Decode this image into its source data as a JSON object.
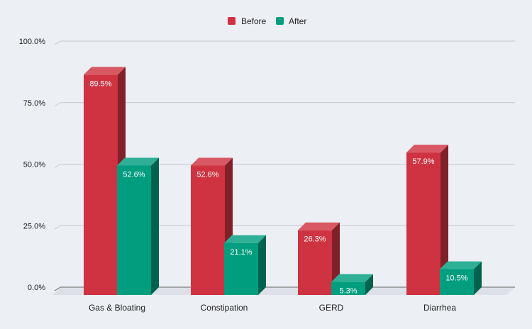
{
  "chart_data": {
    "type": "bar",
    "title": "",
    "xlabel": "",
    "ylabel": "",
    "categories": [
      "Gas & Bloating",
      "Constipation",
      "GERD",
      "Diarrhea"
    ],
    "series": [
      {
        "name": "Before",
        "color": "#cf3341",
        "values": [
          89.5,
          52.6,
          26.3,
          57.9
        ],
        "labels": [
          "89.5%",
          "52.6%",
          "26.3%",
          "57.9%"
        ]
      },
      {
        "name": "After",
        "color": "#009e7f",
        "values": [
          52.6,
          21.1,
          5.3,
          10.5
        ],
        "labels": [
          "52.6%",
          "21.1%",
          "5.3%",
          "10.5%"
        ]
      }
    ],
    "ylim": [
      0,
      100
    ],
    "yticks": [
      0,
      25,
      50,
      75,
      100
    ],
    "ytick_labels": [
      "0.0%",
      "25.0%",
      "50.0%",
      "75.0%",
      "100.0%"
    ],
    "grid": true,
    "legend_position": "top-center",
    "style": "3d"
  }
}
